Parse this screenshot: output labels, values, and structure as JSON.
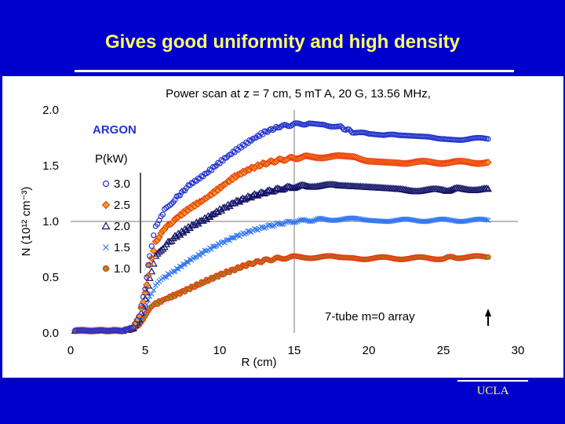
{
  "slide": {
    "title": "Gives good uniformity and high density",
    "footer": "UCLA"
  },
  "colors": {
    "background": "#0000cc",
    "title": "#ffff66",
    "series_3_0": "#2233cc",
    "series_2_5": "#ee3311",
    "series_2_5_fill": "#e8a020",
    "series_2_0": "#111166",
    "series_1_5": "#3377ee",
    "series_1_0": "#ee3311",
    "series_1_0_fill": "#8a9a20"
  },
  "chart_data": {
    "type": "scatter",
    "title": "Power scan at z = 7 cm, 5 mT A, 20 G, 13.56 MHz,",
    "xlabel": "R (cm)",
    "ylabel": "N (10¹² cm⁻³)",
    "xlim": [
      0,
      30
    ],
    "ylim": [
      0.0,
      2.0
    ],
    "x_ticks": [
      "0",
      "5",
      "10",
      "15",
      "20",
      "25",
      "30"
    ],
    "y_ticks": [
      "0.0",
      "0.5",
      "1.0",
      "1.5",
      "2.0"
    ],
    "grid": "x=15 and y=1.0 lines",
    "legend_title": "P(kW)",
    "legend_position": "left",
    "annotations": [
      "ARGON",
      "7-tube m=0 array"
    ],
    "arrow_at_x": 28,
    "series": [
      {
        "name": "3.0",
        "marker": "circle",
        "points": [
          [
            0.3,
            0.02
          ],
          [
            2,
            0.02
          ],
          [
            3.5,
            0.02
          ],
          [
            4.2,
            0.05
          ],
          [
            4.6,
            0.15
          ],
          [
            5,
            0.4
          ],
          [
            5.3,
            0.7
          ],
          [
            5.7,
            0.95
          ],
          [
            6.3,
            1.1
          ],
          [
            7,
            1.2
          ],
          [
            8,
            1.33
          ],
          [
            9,
            1.42
          ],
          [
            10,
            1.53
          ],
          [
            11,
            1.63
          ],
          [
            12,
            1.72
          ],
          [
            13,
            1.8
          ],
          [
            14,
            1.85
          ],
          [
            15,
            1.87
          ],
          [
            16,
            1.88
          ],
          [
            17,
            1.87
          ],
          [
            18,
            1.85
          ],
          [
            19,
            1.8
          ],
          [
            20,
            1.78
          ],
          [
            21,
            1.77
          ],
          [
            22,
            1.77
          ],
          [
            23,
            1.76
          ],
          [
            24,
            1.75
          ],
          [
            25,
            1.75
          ],
          [
            26,
            1.74
          ],
          [
            27,
            1.74
          ],
          [
            28,
            1.74
          ]
        ]
      },
      {
        "name": "2.5",
        "marker": "diamond",
        "points": [
          [
            0.3,
            0.02
          ],
          [
            2,
            0.02
          ],
          [
            3.5,
            0.02
          ],
          [
            4.2,
            0.05
          ],
          [
            4.6,
            0.15
          ],
          [
            5,
            0.35
          ],
          [
            5.3,
            0.6
          ],
          [
            5.7,
            0.82
          ],
          [
            6.3,
            0.93
          ],
          [
            7,
            1.02
          ],
          [
            8,
            1.12
          ],
          [
            9,
            1.2
          ],
          [
            10,
            1.3
          ],
          [
            11,
            1.4
          ],
          [
            12,
            1.47
          ],
          [
            13,
            1.52
          ],
          [
            14,
            1.55
          ],
          [
            15,
            1.57
          ],
          [
            16,
            1.58
          ],
          [
            17,
            1.58
          ],
          [
            18,
            1.58
          ],
          [
            19,
            1.57
          ],
          [
            20,
            1.55
          ],
          [
            21,
            1.54
          ],
          [
            22,
            1.53
          ],
          [
            23,
            1.53
          ],
          [
            24,
            1.53
          ],
          [
            25,
            1.53
          ],
          [
            26,
            1.53
          ],
          [
            27,
            1.53
          ],
          [
            28,
            1.53
          ]
        ]
      },
      {
        "name": "2.0",
        "marker": "triangle",
        "points": [
          [
            0.3,
            0.02
          ],
          [
            2,
            0.02
          ],
          [
            3.5,
            0.02
          ],
          [
            4.2,
            0.04
          ],
          [
            4.6,
            0.12
          ],
          [
            5,
            0.3
          ],
          [
            5.3,
            0.5
          ],
          [
            5.7,
            0.68
          ],
          [
            6.3,
            0.78
          ],
          [
            7,
            0.86
          ],
          [
            8,
            0.95
          ],
          [
            9,
            1.02
          ],
          [
            10,
            1.1
          ],
          [
            11,
            1.17
          ],
          [
            12,
            1.22
          ],
          [
            13,
            1.26
          ],
          [
            14,
            1.29
          ],
          [
            15,
            1.31
          ],
          [
            16,
            1.32
          ],
          [
            17,
            1.32
          ],
          [
            18,
            1.32
          ],
          [
            19,
            1.31
          ],
          [
            20,
            1.3
          ],
          [
            21,
            1.29
          ],
          [
            22,
            1.28
          ],
          [
            23,
            1.28
          ],
          [
            24,
            1.28
          ],
          [
            25,
            1.28
          ],
          [
            26,
            1.29
          ],
          [
            27,
            1.29
          ],
          [
            28,
            1.29
          ]
        ]
      },
      {
        "name": "1.5",
        "marker": "x",
        "points": [
          [
            0.3,
            0.02
          ],
          [
            2,
            0.02
          ],
          [
            3.5,
            0.02
          ],
          [
            4.2,
            0.04
          ],
          [
            4.6,
            0.1
          ],
          [
            5,
            0.22
          ],
          [
            5.3,
            0.33
          ],
          [
            5.7,
            0.42
          ],
          [
            6.3,
            0.5
          ],
          [
            7,
            0.56
          ],
          [
            8,
            0.65
          ],
          [
            9,
            0.73
          ],
          [
            10,
            0.8
          ],
          [
            11,
            0.86
          ],
          [
            12,
            0.91
          ],
          [
            13,
            0.95
          ],
          [
            14,
            0.98
          ],
          [
            15,
            1.0
          ],
          [
            16,
            1.01
          ],
          [
            17,
            1.02
          ],
          [
            18,
            1.02
          ],
          [
            19,
            1.02
          ],
          [
            20,
            1.02
          ],
          [
            21,
            1.01
          ],
          [
            22,
            1.01
          ],
          [
            23,
            1.01
          ],
          [
            24,
            1.01
          ],
          [
            25,
            1.01
          ],
          [
            26,
            1.01
          ],
          [
            27,
            1.01
          ],
          [
            28,
            1.01
          ]
        ]
      },
      {
        "name": "1.0",
        "marker": "circle-filled",
        "points": [
          [
            0.3,
            0.02
          ],
          [
            2,
            0.02
          ],
          [
            3.5,
            0.02
          ],
          [
            4.2,
            0.03
          ],
          [
            4.6,
            0.07
          ],
          [
            5,
            0.15
          ],
          [
            5.3,
            0.22
          ],
          [
            5.7,
            0.26
          ],
          [
            6.3,
            0.3
          ],
          [
            7,
            0.34
          ],
          [
            8,
            0.4
          ],
          [
            9,
            0.46
          ],
          [
            10,
            0.52
          ],
          [
            11,
            0.57
          ],
          [
            12,
            0.62
          ],
          [
            13,
            0.65
          ],
          [
            14,
            0.67
          ],
          [
            15,
            0.68
          ],
          [
            16,
            0.68
          ],
          [
            17,
            0.68
          ],
          [
            18,
            0.68
          ],
          [
            19,
            0.67
          ],
          [
            20,
            0.67
          ],
          [
            21,
            0.67
          ],
          [
            22,
            0.67
          ],
          [
            23,
            0.67
          ],
          [
            24,
            0.67
          ],
          [
            25,
            0.67
          ],
          [
            26,
            0.68
          ],
          [
            27,
            0.68
          ],
          [
            28,
            0.68
          ]
        ]
      }
    ]
  }
}
